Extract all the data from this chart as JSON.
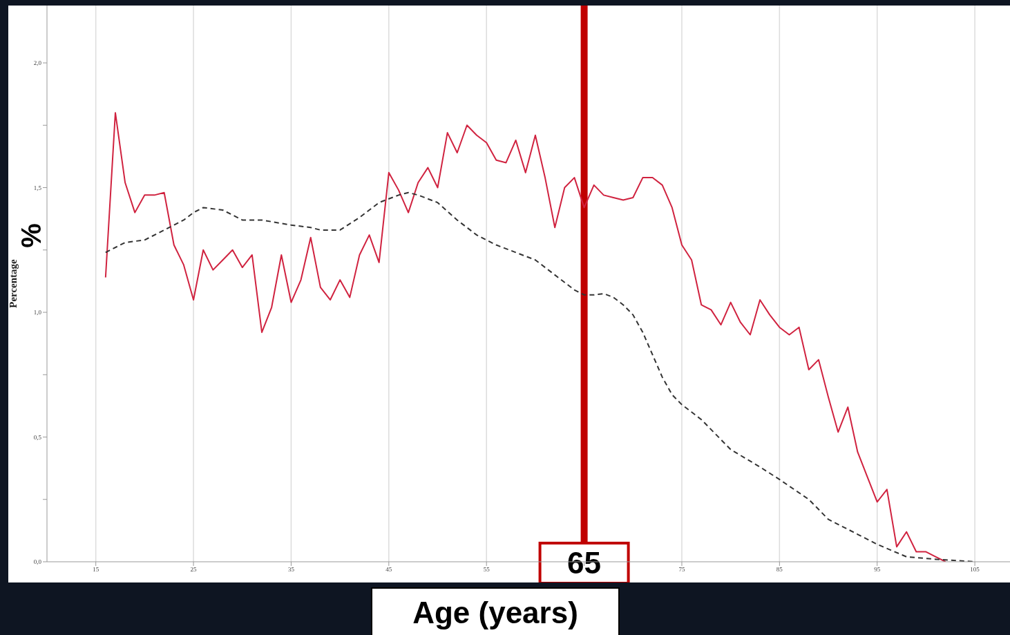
{
  "chart_data": {
    "type": "line",
    "xlabel": "Age (years)",
    "ylabel": "Percentage",
    "annotations": [
      "%"
    ],
    "xlim": [
      10,
      108.6
    ],
    "xticks": [
      15,
      25,
      35,
      45,
      55,
      {
        "value": 65,
        "label": null
      },
      75,
      85,
      95,
      105
    ],
    "ylim": [
      0,
      2.23
    ],
    "yticks": [
      {
        "value": 0,
        "label": "0,0"
      },
      {
        "value": 0.25,
        "label": null
      },
      {
        "value": 0.5,
        "label": "0,5"
      },
      {
        "value": 0.75,
        "label": null
      },
      {
        "value": 1,
        "label": "1,0"
      },
      {
        "value": 1.25,
        "label": null
      },
      {
        "value": 1.5,
        "label": "1,5"
      },
      {
        "value": 1.75,
        "label": null
      },
      {
        "value": 2,
        "label": "2,0"
      }
    ],
    "grid": true,
    "marker": "none",
    "ref_lines": [
      {
        "axis": "x",
        "value": 65,
        "label": "65",
        "color": "#c00000"
      }
    ],
    "series": [
      {
        "color": "#d0223f",
        "line_style": "solid",
        "x": [
          16,
          17,
          18,
          19,
          20,
          21,
          22,
          23,
          24,
          25,
          26,
          27,
          28,
          29,
          30,
          31,
          32,
          33,
          34,
          35,
          36,
          37,
          38,
          39,
          40,
          41,
          42,
          43,
          44,
          45,
          46,
          47,
          48,
          49,
          50,
          51,
          52,
          53,
          54,
          55,
          56,
          57,
          58,
          59,
          60,
          61,
          62,
          63,
          64,
          65,
          66,
          67,
          68,
          69,
          70,
          71,
          72,
          73,
          74,
          75,
          76,
          77,
          78,
          79,
          80,
          81,
          82,
          83,
          84,
          85,
          86,
          87,
          88,
          89,
          90,
          91,
          92,
          93,
          94,
          95,
          96,
          97,
          98,
          99,
          100,
          101,
          102
        ],
        "values": [
          1.14,
          1.8,
          1.52,
          1.4,
          1.47,
          1.47,
          1.48,
          1.27,
          1.19,
          1.05,
          1.25,
          1.17,
          1.21,
          1.25,
          1.18,
          1.23,
          0.92,
          1.02,
          1.23,
          1.04,
          1.13,
          1.3,
          1.1,
          1.05,
          1.13,
          1.06,
          1.23,
          1.31,
          1.2,
          1.56,
          1.49,
          1.4,
          1.52,
          1.58,
          1.5,
          1.72,
          1.64,
          1.75,
          1.71,
          1.68,
          1.61,
          1.6,
          1.69,
          1.56,
          1.71,
          1.54,
          1.34,
          1.5,
          1.54,
          1.42,
          1.51,
          1.47,
          1.46,
          1.45,
          1.46,
          1.54,
          1.54,
          1.51,
          1.42,
          1.27,
          1.21,
          1.03,
          1.01,
          0.95,
          1.04,
          0.96,
          0.91,
          1.05,
          0.99,
          0.94,
          0.91,
          0.94,
          0.77,
          0.81,
          0.66,
          0.52,
          0.62,
          0.44,
          0.34,
          0.24,
          0.29,
          0.06,
          0.12,
          0.04,
          0.04,
          0.02,
          0.0
        ]
      },
      {
        "color": "#333333",
        "line_style": "dashed",
        "x": [
          16,
          18,
          20,
          22,
          24,
          25,
          26,
          28,
          30,
          32,
          35,
          37,
          38,
          40,
          42,
          44,
          46,
          47,
          48,
          50,
          52,
          54,
          56,
          58,
          60,
          62,
          64,
          65,
          66,
          67,
          68,
          69,
          70,
          71,
          72,
          73,
          74,
          75,
          77,
          80,
          83,
          85,
          88,
          90,
          93,
          95,
          98,
          101,
          105
        ],
        "values": [
          1.24,
          1.28,
          1.29,
          1.33,
          1.37,
          1.4,
          1.42,
          1.41,
          1.37,
          1.37,
          1.35,
          1.34,
          1.33,
          1.33,
          1.38,
          1.44,
          1.47,
          1.48,
          1.47,
          1.44,
          1.37,
          1.31,
          1.27,
          1.24,
          1.21,
          1.15,
          1.09,
          1.07,
          1.07,
          1.075,
          1.06,
          1.03,
          0.99,
          0.92,
          0.83,
          0.74,
          0.67,
          0.63,
          0.57,
          0.45,
          0.38,
          0.33,
          0.25,
          0.17,
          0.11,
          0.07,
          0.02,
          0.01,
          0.0
        ]
      }
    ]
  }
}
